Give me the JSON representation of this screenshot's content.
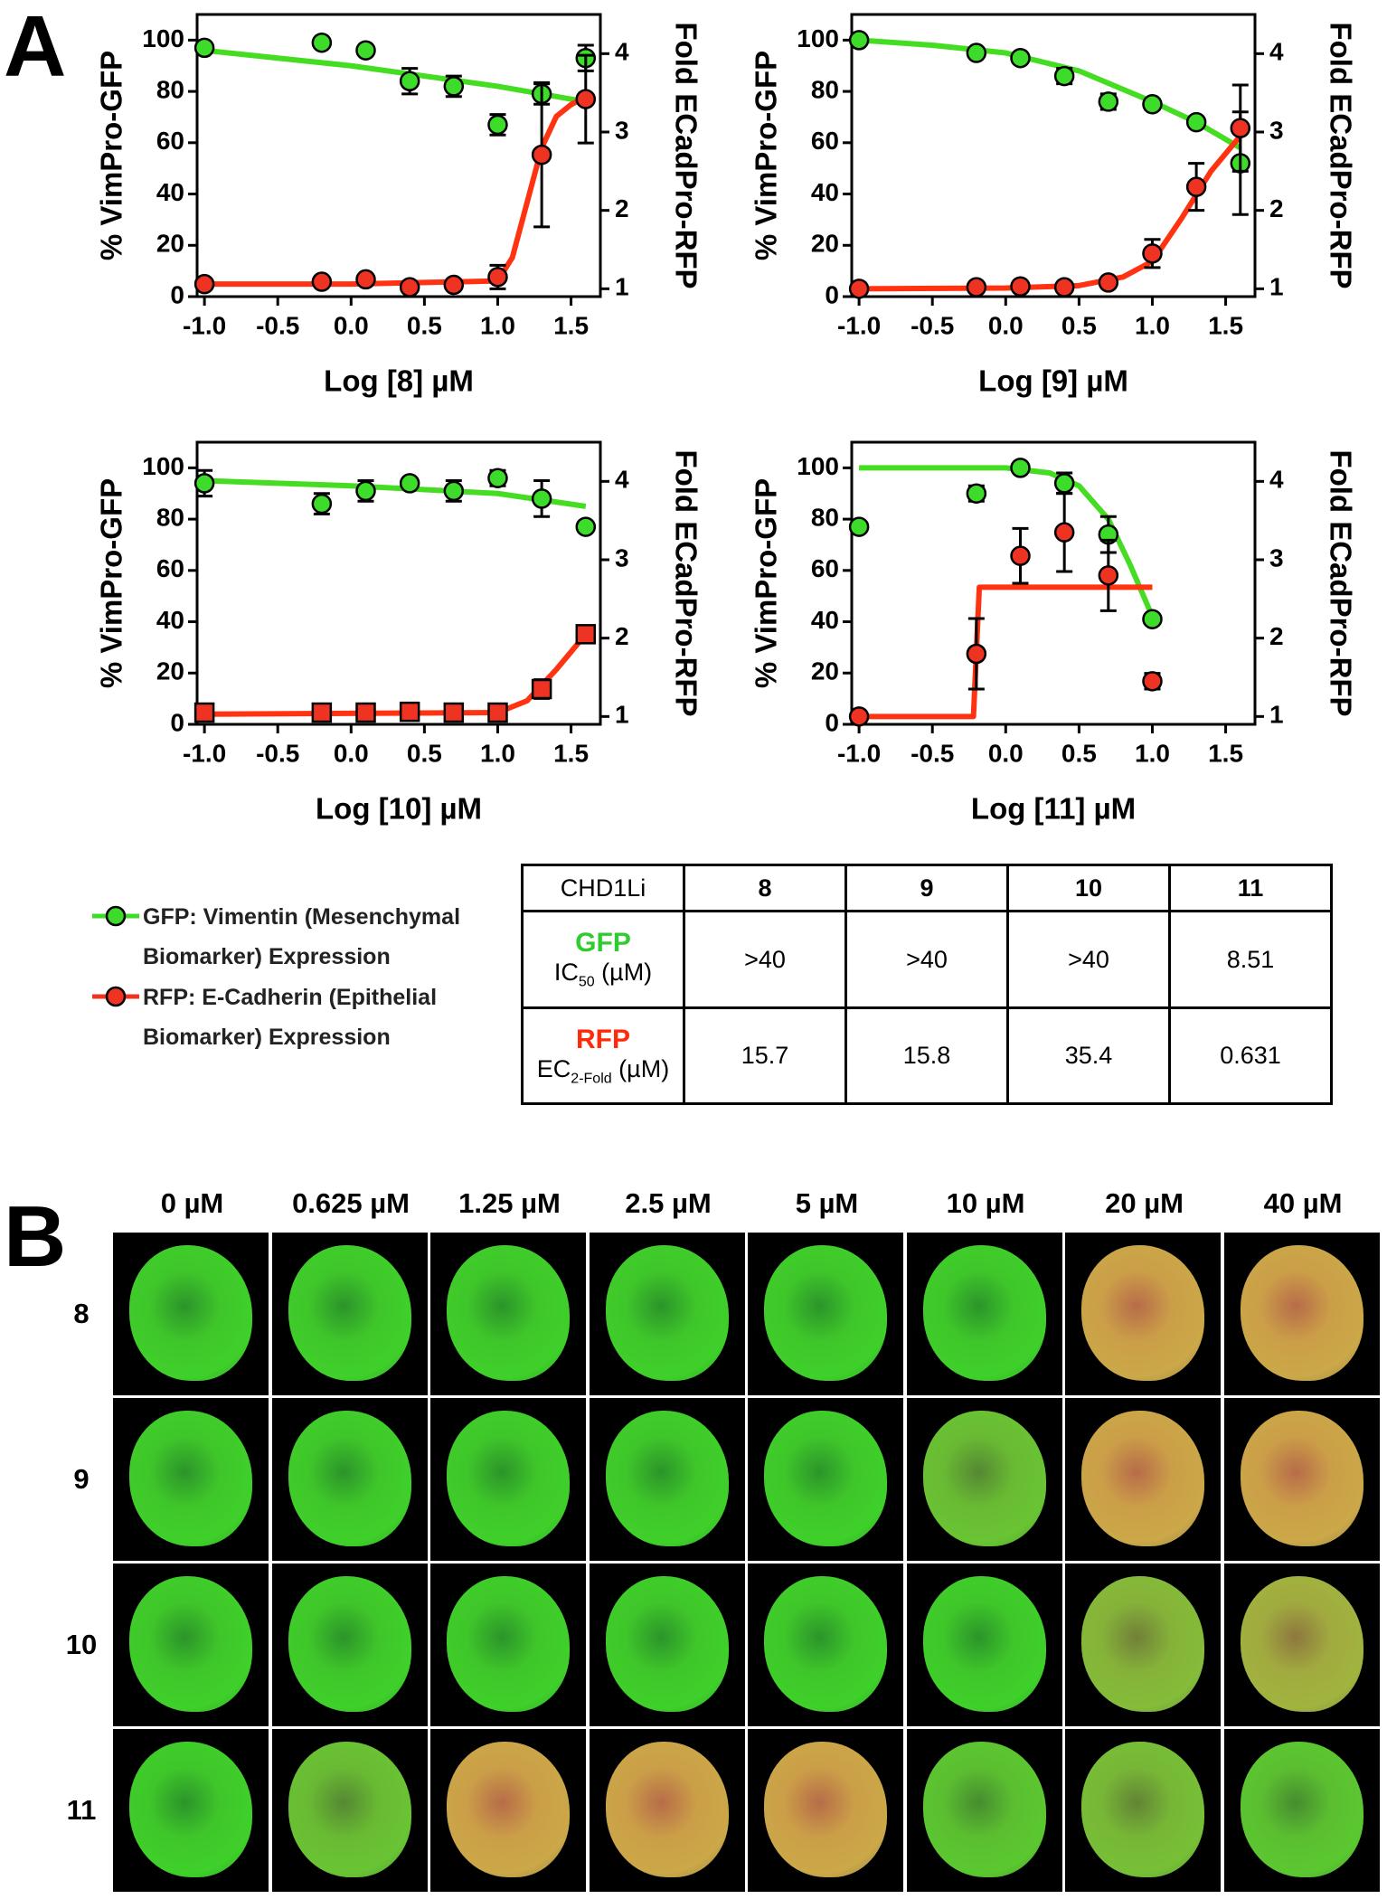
{
  "panels": [
    "A",
    "B"
  ],
  "chart_data": [
    {
      "type": "scatter",
      "x_label": "Log [8] µM",
      "y_label": "% VimPro-GFP",
      "y2_label": "Fold ECadPro-RFP",
      "xlim": [
        -1.05,
        1.7
      ],
      "xticks": [
        {
          "value": -1,
          "label": "-1.0"
        },
        {
          "value": -0.5,
          "label": "-0.5"
        },
        {
          "value": 0,
          "label": "0.0"
        },
        {
          "value": 0.5,
          "label": "0.5"
        },
        {
          "value": 1,
          "label": "1.0"
        },
        {
          "value": 1.5,
          "label": "1.5"
        }
      ],
      "ylim": [
        0,
        110
      ],
      "yticks": [
        0,
        20,
        40,
        60,
        80,
        100
      ],
      "y2lim": [
        0.9,
        4.5
      ],
      "y2ticks": [
        1,
        2,
        3,
        4
      ],
      "series": [
        {
          "color": "#3ddc2a",
          "marker": "circle",
          "x": [
            -1,
            -0.2,
            0.1,
            0.4,
            0.7,
            1.0,
            1.3,
            1.6
          ],
          "values": [
            97,
            99,
            96,
            84,
            82,
            67,
            79,
            93
          ],
          "errors": [
            1,
            1,
            1,
            5,
            4,
            4,
            4,
            5
          ]
        },
        {
          "color": "#ee3322",
          "marker": "circle",
          "axis": "y2",
          "x": [
            -1,
            -0.2,
            0.1,
            0.4,
            0.7,
            1.0,
            1.3,
            1.6
          ],
          "values": [
            1.06,
            1.09,
            1.12,
            1.02,
            1.05,
            1.15,
            2.71,
            3.42
          ],
          "errors": [
            0.02,
            0.02,
            0.02,
            0.02,
            0.02,
            0.15,
            0.92,
            0.56
          ]
        }
      ],
      "curves": [
        {
          "color": "#44dd22",
          "x": [
            -1,
            -0.5,
            0,
            0.5,
            1.0,
            1.6
          ],
          "values": [
            96,
            93,
            90,
            86,
            82,
            76
          ]
        },
        {
          "color": "#ff3311",
          "axis": "y2",
          "x": [
            -1,
            0,
            1.0,
            1.1,
            1.2,
            1.3,
            1.4,
            1.5,
            1.6
          ],
          "values": [
            1.06,
            1.06,
            1.1,
            1.4,
            2.1,
            2.8,
            3.2,
            3.35,
            3.45
          ]
        }
      ]
    },
    {
      "type": "scatter",
      "x_label": "Log [9] µM",
      "y_label": "% VimPro-GFP",
      "y2_label": "Fold ECadPro-RFP",
      "xlim": [
        -1.05,
        1.7
      ],
      "xticks": [
        {
          "value": -1,
          "label": "-1.0"
        },
        {
          "value": -0.5,
          "label": "-0.5"
        },
        {
          "value": 0,
          "label": "0.0"
        },
        {
          "value": 0.5,
          "label": "0.5"
        },
        {
          "value": 1,
          "label": "1.0"
        },
        {
          "value": 1.5,
          "label": "1.5"
        }
      ],
      "ylim": [
        0,
        110
      ],
      "yticks": [
        0,
        20,
        40,
        60,
        80,
        100
      ],
      "y2lim": [
        0.9,
        4.5
      ],
      "y2ticks": [
        1,
        2,
        3,
        4
      ],
      "series": [
        {
          "color": "#3ddc2a",
          "marker": "circle",
          "x": [
            -1,
            -0.2,
            0.1,
            0.4,
            0.7,
            1.0,
            1.3,
            1.6
          ],
          "values": [
            100,
            95,
            93,
            86,
            76,
            75,
            68,
            52
          ],
          "errors": [
            1,
            1,
            1,
            3,
            3,
            2,
            1,
            20
          ]
        },
        {
          "color": "#ee3322",
          "marker": "circle",
          "axis": "y2",
          "x": [
            -1,
            -0.2,
            0.1,
            0.4,
            0.7,
            1.0,
            1.3,
            1.6
          ],
          "values": [
            1.0,
            1.02,
            1.03,
            1.02,
            1.08,
            1.45,
            2.3,
            3.05
          ],
          "errors": [
            0.02,
            0.02,
            0.02,
            0.02,
            0.02,
            0.18,
            0.3,
            0.55
          ]
        }
      ],
      "curves": [
        {
          "color": "#44dd22",
          "x": [
            -1,
            -0.5,
            0,
            0.5,
            1.0,
            1.3,
            1.6
          ],
          "values": [
            100,
            98,
            95,
            88,
            76,
            68,
            58
          ]
        },
        {
          "color": "#ff3311",
          "axis": "y2",
          "x": [
            -1,
            0,
            0.5,
            0.8,
            1.0,
            1.2,
            1.4,
            1.6
          ],
          "values": [
            1,
            1.01,
            1.04,
            1.15,
            1.35,
            1.9,
            2.5,
            2.95
          ]
        }
      ]
    },
    {
      "type": "scatter",
      "x_label": "Log [10] µM",
      "y_label": "% VimPro-GFP",
      "y2_label": "Fold ECadPro-RFP",
      "xlim": [
        -1.05,
        1.7
      ],
      "xticks": [
        {
          "value": -1,
          "label": "-1.0"
        },
        {
          "value": -0.5,
          "label": "-0.5"
        },
        {
          "value": 0,
          "label": "0.0"
        },
        {
          "value": 0.5,
          "label": "0.5"
        },
        {
          "value": 1,
          "label": "1.0"
        },
        {
          "value": 1.5,
          "label": "1.5"
        }
      ],
      "ylim": [
        0,
        110
      ],
      "yticks": [
        0,
        20,
        40,
        60,
        80,
        100
      ],
      "y2lim": [
        0.9,
        4.5
      ],
      "y2ticks": [
        1,
        2,
        3,
        4
      ],
      "series": [
        {
          "color": "#3ddc2a",
          "marker": "circle",
          "x": [
            -1,
            -0.2,
            0.1,
            0.4,
            0.7,
            1.0,
            1.3,
            1.6
          ],
          "values": [
            94,
            86,
            91,
            94,
            91,
            96,
            88,
            77
          ],
          "errors": [
            5,
            4,
            4,
            1,
            4,
            3,
            7,
            1
          ]
        },
        {
          "color": "#ee3322",
          "marker": "square",
          "axis": "y2",
          "x": [
            -1,
            -0.2,
            0.1,
            0.4,
            0.7,
            1.0,
            1.3,
            1.6
          ],
          "values": [
            1.05,
            1.05,
            1.05,
            1.06,
            1.05,
            1.05,
            1.35,
            2.05
          ],
          "errors": [
            0.02,
            0.02,
            0.02,
            0.02,
            0.02,
            0.02,
            0.12,
            0.02
          ]
        }
      ],
      "curves": [
        {
          "color": "#44dd22",
          "x": [
            -1,
            0,
            1.0,
            1.6
          ],
          "values": [
            95,
            93,
            90,
            85
          ]
        },
        {
          "color": "#ff3311",
          "axis": "y2",
          "x": [
            -1,
            1.0,
            1.2,
            1.4,
            1.6
          ],
          "values": [
            1.03,
            1.05,
            1.2,
            1.6,
            2.05
          ]
        }
      ]
    },
    {
      "type": "scatter",
      "x_label": "Log [11] µM",
      "y_label": "% VimPro-GFP",
      "y2_label": "Fold ECadPro-RFP",
      "xlim": [
        -1.05,
        1.7
      ],
      "xticks": [
        {
          "value": -1,
          "label": "-1.0"
        },
        {
          "value": -0.5,
          "label": "-0.5"
        },
        {
          "value": 0,
          "label": "0.0"
        },
        {
          "value": 0.5,
          "label": "0.5"
        },
        {
          "value": 1,
          "label": "1.0"
        },
        {
          "value": 1.5,
          "label": "1.5"
        }
      ],
      "ylim": [
        0,
        110
      ],
      "yticks": [
        0,
        20,
        40,
        60,
        80,
        100
      ],
      "y2lim": [
        0.9,
        4.5
      ],
      "y2ticks": [
        1,
        2,
        3,
        4
      ],
      "series": [
        {
          "color": "#3ddc2a",
          "marker": "circle",
          "x": [
            -1,
            -0.2,
            0.1,
            0.4,
            0.7,
            1.0
          ],
          "values": [
            77,
            90,
            100,
            94,
            74,
            41
          ],
          "errors": [
            1,
            3,
            1,
            4,
            7,
            1
          ]
        },
        {
          "color": "#ee3322",
          "marker": "circle",
          "axis": "y2",
          "x": [
            -1,
            -0.2,
            0.1,
            0.4,
            0.7,
            1.0
          ],
          "values": [
            1.0,
            1.8,
            3.05,
            3.35,
            2.8,
            1.45
          ],
          "errors": [
            0.02,
            0.45,
            0.35,
            0.5,
            0.45,
            0.1
          ]
        }
      ],
      "curves": [
        {
          "color": "#44dd22",
          "x": [
            -1,
            0,
            0.3,
            0.5,
            0.7,
            0.85,
            1.0
          ],
          "values": [
            100,
            100,
            98,
            93,
            80,
            62,
            42
          ]
        },
        {
          "color": "#ff3311",
          "axis": "y2",
          "x": [
            -1,
            -0.22,
            -0.18,
            1.0
          ],
          "values": [
            1,
            1,
            2.65,
            2.65
          ]
        }
      ]
    }
  ],
  "legend": [
    {
      "label": "GFP: Vimentin (Mesenchymal Biomarker) Expression",
      "color": "#3ddc2a"
    },
    {
      "label": "RFP: E-Cadherin (Epithelial Biomarker) Expression",
      "color": "#ee3322"
    }
  ],
  "table": {
    "header": [
      "CHD1Li",
      "8",
      "9",
      "10",
      "11"
    ],
    "rows": [
      {
        "name": "GFP",
        "color": "#2fcc2f",
        "measure": "IC",
        "subscript": "50",
        "unit": "(µM)",
        "cells": [
          ">40",
          ">40",
          ">40",
          "8.51"
        ]
      },
      {
        "name": "RFP",
        "color": "#ff2a0a",
        "measure": "EC",
        "subscript": "2-Fold",
        "unit": "(µM)",
        "cells": [
          "15.7",
          "15.8",
          "35.4",
          "0.631"
        ]
      }
    ]
  },
  "micrographs": {
    "columns": [
      "0 µM",
      "0.625 µM",
      "1.25 µM",
      "2.5 µM",
      "5 µM",
      "10 µM",
      "20 µM",
      "40 µM"
    ],
    "rows": [
      "8",
      "9",
      "10",
      "11"
    ]
  }
}
